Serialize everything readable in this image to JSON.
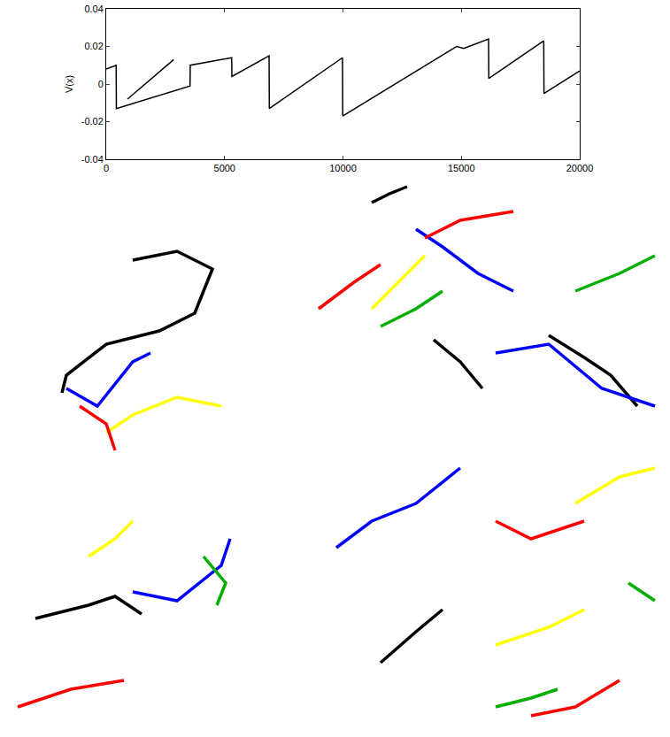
{
  "chart_data": [
    {
      "type": "line",
      "ylabel": "V(x)",
      "xlim": [
        0,
        20000
      ],
      "ylim": [
        -0.04,
        0.04
      ],
      "xticks": [
        0,
        5000,
        10000,
        15000,
        20000
      ],
      "yticks": [
        -0.04,
        -0.02,
        0,
        0.02,
        0.04
      ],
      "grid": false,
      "series": [
        {
          "color": "#000000",
          "x": [
            0,
            420,
            430,
            3540,
            3550,
            5300,
            5310,
            6880,
            6890,
            9980,
            9990,
            14800,
            15100,
            16150,
            16160,
            18480,
            18490,
            20000
          ],
          "values": [
            0.008,
            0.01,
            -0.013,
            -0.001,
            0.01,
            0.014,
            0.004,
            0.015,
            -0.013,
            0.014,
            -0.017,
            0.02,
            0.019,
            0.024,
            0.003,
            0.023,
            -0.005,
            0.007
          ]
        },
        {
          "color": "#000000",
          "x": [
            900,
            2850
          ],
          "values": [
            -0.008,
            0.013
          ]
        }
      ]
    },
    {
      "type": "line",
      "tick_labels": false,
      "grid": false,
      "xlim": [
        0,
        757
      ],
      "ylim": [
        618,
        0
      ],
      "series": [
        {
          "color": "#000000",
          "x": [
            150,
            200,
            240,
            220,
            180,
            120,
            75,
            70,
            null,
            420,
            440,
            460,
            null,
            620,
            660,
            690,
            720,
            null,
            40,
            100,
            130,
            160,
            null,
            490,
            520,
            545,
            null,
            430,
            470,
            500
          ],
          "values": [
            85,
            75,
            95,
            145,
            165,
            180,
            215,
            235,
            null,
            20,
            10,
            2,
            null,
            170,
            195,
            215,
            250,
            null,
            490,
            475,
            465,
            485,
            null,
            175,
            200,
            230,
            null,
            540,
            505,
            480
          ]
        },
        {
          "color": "#0000ff",
          "x": [
            75,
            110,
            150,
            170,
            null,
            150,
            200,
            250,
            260,
            null,
            560,
            620,
            680,
            740,
            null,
            380,
            420,
            470,
            520,
            null,
            470,
            500,
            540,
            580
          ],
          "values": [
            230,
            250,
            200,
            190,
            null,
            460,
            470,
            430,
            400,
            null,
            190,
            180,
            230,
            250,
            null,
            410,
            380,
            360,
            320,
            null,
            50,
            70,
            100,
            120
          ]
        },
        {
          "color": "#00b000",
          "x": [
            230,
            255,
            245,
            null,
            430,
            470,
            500,
            null,
            650,
            700,
            740,
            null,
            560,
            600,
            630,
            null,
            710,
            740
          ],
          "values": [
            420,
            450,
            475,
            null,
            160,
            140,
            120,
            null,
            120,
            100,
            80,
            null,
            590,
            580,
            570,
            null,
            450,
            470
          ]
        },
        {
          "color": "#ffff00",
          "x": [
            120,
            150,
            200,
            250,
            null,
            420,
            460,
            480,
            null,
            100,
            130,
            150,
            null,
            650,
            700,
            740,
            null,
            560,
            620,
            660
          ],
          "values": [
            280,
            260,
            240,
            250,
            null,
            140,
            100,
            80,
            null,
            420,
            400,
            380,
            null,
            360,
            330,
            320,
            null,
            520,
            500,
            480
          ]
        },
        {
          "color": "#ff0000",
          "x": [
            90,
            120,
            130,
            null,
            360,
            400,
            430,
            null,
            480,
            520,
            580,
            null,
            560,
            600,
            660,
            null,
            20,
            80,
            140,
            null,
            600,
            650,
            700
          ],
          "values": [
            250,
            270,
            300,
            null,
            140,
            110,
            90,
            null,
            60,
            40,
            30,
            null,
            380,
            400,
            380,
            null,
            590,
            570,
            560,
            null,
            600,
            590,
            560
          ]
        }
      ]
    }
  ]
}
